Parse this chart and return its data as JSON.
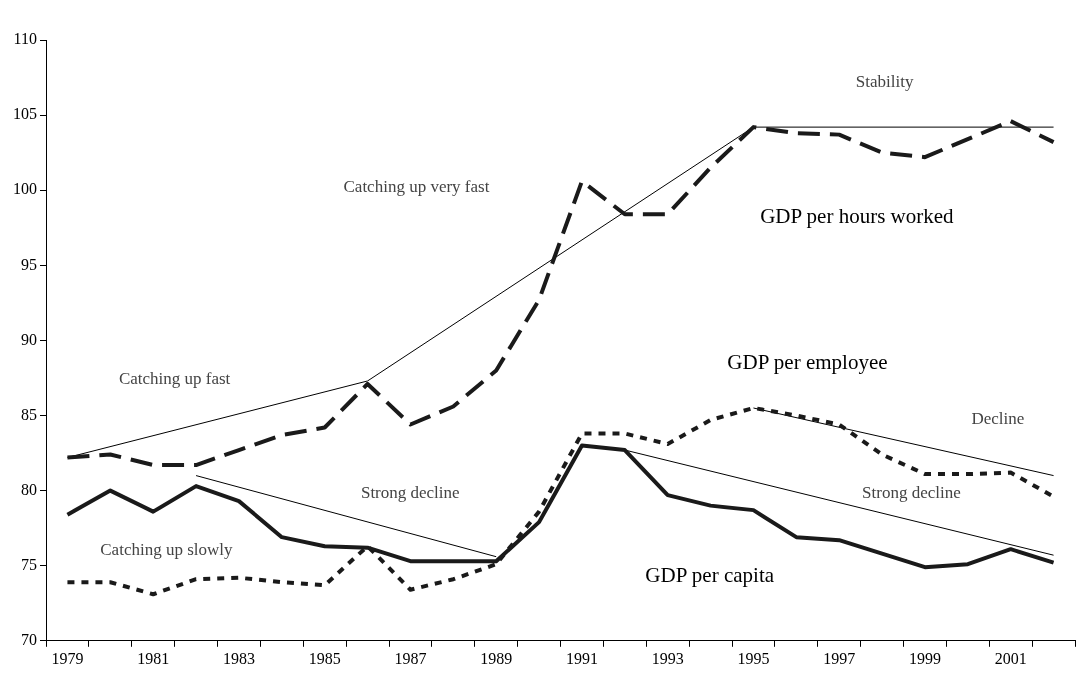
{
  "chart_data": {
    "type": "line",
    "categories": [
      "1979",
      null,
      "1981",
      null,
      "1983",
      null,
      "1985",
      null,
      "1987",
      null,
      "1989",
      null,
      "1991",
      null,
      "1993",
      null,
      "1995",
      null,
      "1997",
      null,
      "1999",
      null,
      "2001",
      null
    ],
    "series": [
      {
        "name": "GDP per capita",
        "color": "#1a1a1a",
        "line_style": "solid",
        "values": [
          78.4,
          80.0,
          78.6,
          80.3,
          79.3,
          76.9,
          76.3,
          76.2,
          75.3,
          75.3,
          75.3,
          77.9,
          83.0,
          82.7,
          79.7,
          79.0,
          78.7,
          76.9,
          76.7,
          75.8,
          74.9,
          75.1,
          76.1,
          75.2
        ]
      },
      {
        "name": "GDP per employee",
        "color": "#1a1a1a",
        "line_style": "dotted",
        "values": [
          73.9,
          73.9,
          73.1,
          74.1,
          74.2,
          73.9,
          73.7,
          76.3,
          73.4,
          74.1,
          75.1,
          78.6,
          83.8,
          83.8,
          83.1,
          84.7,
          85.5,
          85.0,
          84.4,
          82.4,
          81.1,
          81.1,
          81.2,
          79.6
        ]
      },
      {
        "name": "GDP per hours worked",
        "color": "#1a1a1a",
        "line_style": "dashed",
        "values": [
          82.2,
          82.4,
          81.7,
          81.7,
          82.7,
          83.7,
          84.2,
          87.1,
          84.4,
          85.6,
          88.0,
          92.7,
          100.6,
          98.4,
          98.4,
          101.5,
          104.2,
          103.8,
          103.7,
          102.5,
          102.2,
          103.4,
          104.6,
          103.2
        ]
      },
      {
        "color": "#000000",
        "line_style": "solid",
        "values": [
          82.2,
          null,
          null,
          null,
          null,
          null,
          null,
          87.3,
          null,
          null,
          null,
          null,
          null,
          null,
          null,
          null,
          104.2,
          null,
          null,
          null,
          null,
          null,
          null,
          104.2
        ]
      },
      {
        "color": "#000000",
        "line_style": "solid",
        "values": [
          null,
          null,
          null,
          81.0,
          null,
          null,
          null,
          null,
          null,
          null,
          75.6,
          null,
          null,
          null,
          null,
          null,
          null,
          null,
          null,
          null,
          null,
          null,
          null,
          null
        ]
      },
      {
        "color": "#000000",
        "line_style": "solid",
        "values": [
          null,
          null,
          null,
          null,
          null,
          null,
          null,
          null,
          null,
          null,
          null,
          null,
          null,
          82.7,
          null,
          null,
          null,
          null,
          null,
          null,
          null,
          null,
          null,
          75.7
        ]
      },
      {
        "color": "#000000",
        "line_style": "solid",
        "values": [
          null,
          null,
          null,
          null,
          null,
          null,
          null,
          null,
          null,
          null,
          null,
          null,
          null,
          null,
          null,
          null,
          85.5,
          null,
          null,
          null,
          null,
          null,
          null,
          81.0
        ]
      }
    ],
    "ylim": [
      70,
      110
    ],
    "yticks": [
      70,
      75,
      80,
      85,
      90,
      95,
      100,
      105,
      110
    ],
    "grid": false,
    "legend": false,
    "marker": "none",
    "annotations": [
      "Catching up fast",
      "Catching up very fast",
      "Stability",
      "Strong decline",
      "Catching up slowly",
      "Strong decline",
      "Decline"
    ]
  }
}
